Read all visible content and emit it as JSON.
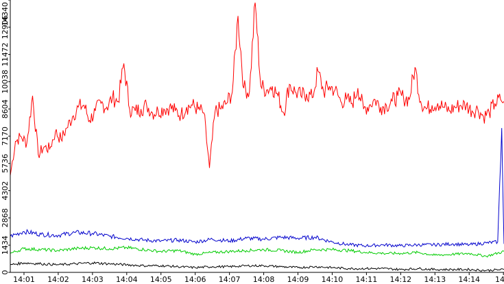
{
  "chart_data": {
    "type": "line",
    "title": "",
    "xlabel": "",
    "ylabel": "",
    "x_tick_labels": [
      "14:01",
      "14:02",
      "14:03",
      "14:04",
      "14:05",
      "14:06",
      "14:07",
      "14:08",
      "14:09",
      "14:10",
      "14:11",
      "14:12",
      "14:13",
      "14:14",
      "14"
    ],
    "y_tick_labels": [
      "0",
      "1434",
      "2868",
      "4302",
      "5736",
      "7170",
      "8604",
      "10038",
      "11472",
      "12906",
      "14340"
    ],
    "x_range": [
      "14:00:36",
      "14:15:01"
    ],
    "ylim": [
      0,
      14340
    ],
    "grid": false,
    "legend": "none",
    "series": [
      {
        "color": "#ff0000",
        "x": [
          "14:00:36",
          "14:00:45",
          "14:00:55",
          "14:01:05",
          "14:01:15",
          "14:01:25",
          "14:01:35",
          "14:01:45",
          "14:01:55",
          "14:02:05",
          "14:02:15",
          "14:02:25",
          "14:02:35",
          "14:02:45",
          "14:02:55",
          "14:03:05",
          "14:03:15",
          "14:03:25",
          "14:03:35",
          "14:03:45",
          "14:03:55",
          "14:04:05",
          "14:04:15",
          "14:04:25",
          "14:04:35",
          "14:04:45",
          "14:04:55",
          "14:05:05",
          "14:05:15",
          "14:05:25",
          "14:05:35",
          "14:05:45",
          "14:05:55",
          "14:06:05",
          "14:06:15",
          "14:06:25",
          "14:06:35",
          "14:06:45",
          "14:06:55",
          "14:07:05",
          "14:07:15",
          "14:07:25",
          "14:07:35",
          "14:07:45",
          "14:07:55",
          "14:08:05",
          "14:08:15",
          "14:08:25",
          "14:08:35",
          "14:08:45",
          "14:08:55",
          "14:09:05",
          "14:09:15",
          "14:09:25",
          "14:09:35",
          "14:09:45",
          "14:09:55",
          "14:10:05",
          "14:10:15",
          "14:10:25",
          "14:10:35",
          "14:10:45",
          "14:10:55",
          "14:11:05",
          "14:11:15",
          "14:11:25",
          "14:11:35",
          "14:11:45",
          "14:11:55",
          "14:12:05",
          "14:12:15",
          "14:12:25",
          "14:12:35",
          "14:12:45",
          "14:12:55",
          "14:13:05",
          "14:13:15",
          "14:13:25",
          "14:13:35",
          "14:13:45",
          "14:13:55",
          "14:14:05",
          "14:14:15",
          "14:14:25",
          "14:14:35",
          "14:14:45",
          "14:14:55",
          "14:15:01"
        ],
        "y": [
          5100,
          6900,
          7150,
          6800,
          9300,
          6200,
          6600,
          6500,
          7400,
          7000,
          7600,
          8200,
          8700,
          8800,
          8000,
          8500,
          8900,
          8700,
          9200,
          9000,
          11000,
          8600,
          8500,
          8600,
          8800,
          8400,
          8500,
          8600,
          8700,
          8500,
          8300,
          8700,
          8800,
          8600,
          8400,
          5500,
          8500,
          8600,
          8900,
          9500,
          13500,
          9700,
          9500,
          14200,
          9800,
          9600,
          9800,
          9300,
          8400,
          9900,
          9500,
          9300,
          9400,
          9200,
          10600,
          9500,
          9800,
          9600,
          9000,
          9100,
          8900,
          9700,
          8600,
          8800,
          9100,
          8700,
          8800,
          9000,
          9300,
          9200,
          9100,
          10800,
          9000,
          8600,
          8800,
          8900,
          8700,
          8500,
          8700,
          8800,
          8800,
          8500,
          8600,
          8200,
          8400,
          8900,
          9100,
          9000
        ]
      },
      {
        "color": "#0000cc",
        "x": [
          "14:00:36",
          "14:01:00",
          "14:01:30",
          "14:02:00",
          "14:02:30",
          "14:03:00",
          "14:03:30",
          "14:04:00",
          "14:04:30",
          "14:05:00",
          "14:05:30",
          "14:06:00",
          "14:06:30",
          "14:07:00",
          "14:07:30",
          "14:08:00",
          "14:08:30",
          "14:09:00",
          "14:09:30",
          "14:10:00",
          "14:10:30",
          "14:11:00",
          "14:11:30",
          "14:12:00",
          "14:12:30",
          "14:13:00",
          "14:13:30",
          "14:14:00",
          "14:14:30",
          "14:14:50",
          "14:14:57",
          "14:15:01"
        ],
        "y": [
          1900,
          2150,
          2000,
          1950,
          2100,
          2050,
          1900,
          1800,
          1700,
          1650,
          1700,
          1600,
          1750,
          1650,
          1800,
          1750,
          1850,
          1800,
          1850,
          1600,
          1450,
          1400,
          1450,
          1400,
          1450,
          1450,
          1500,
          1450,
          1550,
          1600,
          7600,
          1500
        ]
      },
      {
        "color": "#00cc00",
        "x": [
          "14:00:36",
          "14:01:00",
          "14:01:30",
          "14:02:00",
          "14:02:30",
          "14:03:00",
          "14:03:30",
          "14:04:00",
          "14:04:30",
          "14:05:00",
          "14:05:30",
          "14:06:00",
          "14:06:30",
          "14:07:00",
          "14:07:30",
          "14:08:00",
          "14:08:30",
          "14:09:00",
          "14:09:30",
          "14:10:00",
          "14:10:30",
          "14:11:00",
          "14:11:30",
          "14:12:00",
          "14:12:30",
          "14:13:00",
          "14:13:30",
          "14:14:00",
          "14:14:30",
          "14:15:01"
        ],
        "y": [
          1000,
          1250,
          1200,
          1150,
          1250,
          1300,
          1250,
          1300,
          1200,
          1100,
          1150,
          950,
          1050,
          1100,
          1150,
          1200,
          1150,
          1050,
          1200,
          1200,
          1150,
          1050,
          1000,
          1000,
          1050,
          900,
          950,
          1000,
          850,
          1100
        ]
      },
      {
        "color": "#000000",
        "x": [
          "14:00:36",
          "14:01:00",
          "14:01:30",
          "14:02:00",
          "14:02:30",
          "14:03:00",
          "14:03:30",
          "14:04:00",
          "14:04:30",
          "14:05:00",
          "14:05:30",
          "14:06:00",
          "14:06:30",
          "14:07:00",
          "14:07:30",
          "14:08:00",
          "14:08:30",
          "14:09:00",
          "14:09:30",
          "14:10:00",
          "14:10:30",
          "14:11:00",
          "14:11:30",
          "14:12:00",
          "14:12:30",
          "14:13:00",
          "14:13:30",
          "14:14:00",
          "14:14:30",
          "14:15:01"
        ],
        "y": [
          400,
          500,
          450,
          400,
          450,
          500,
          450,
          400,
          350,
          350,
          300,
          250,
          300,
          300,
          350,
          350,
          300,
          250,
          300,
          250,
          200,
          200,
          200,
          150,
          200,
          150,
          150,
          150,
          100,
          150
        ]
      }
    ]
  }
}
